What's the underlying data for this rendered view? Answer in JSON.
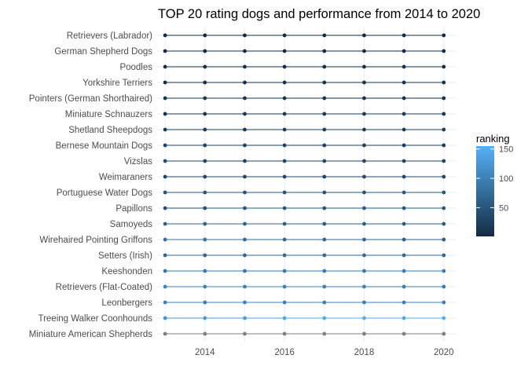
{
  "chart_data": {
    "type": "line",
    "title": "TOP 20 rating dogs and performance from 2014 to 2020",
    "xlabel": "",
    "ylabel": "",
    "x": [
      2013,
      2014,
      2015,
      2016,
      2017,
      2018,
      2019,
      2020
    ],
    "xlim": [
      2012.8,
      2020.3
    ],
    "x_ticks": [
      "2014",
      "2016",
      "2018",
      "2020"
    ],
    "x_tick_values": [
      2014,
      2016,
      2018,
      2020
    ],
    "grid": true,
    "legend": {
      "title": "ranking",
      "position": "right",
      "ticks": [
        50,
        100,
        150
      ],
      "tick_labels": [
        "50",
        "100",
        "150"
      ],
      "range": [
        1,
        155
      ]
    },
    "colors": {
      "low": "#132B43",
      "high": "#56B1F7",
      "na": "#7f7f7f"
    },
    "breeds": [
      {
        "name": "Retrievers (Labrador)",
        "values": [
          1,
          1,
          1,
          1,
          1,
          1,
          1,
          1
        ]
      },
      {
        "name": "German Shepherd Dogs",
        "values": [
          2,
          2,
          2,
          2,
          2,
          2,
          2,
          2
        ]
      },
      {
        "name": "Poodles",
        "values": [
          8,
          7,
          7,
          7,
          7,
          7,
          6,
          5
        ]
      },
      {
        "name": "Yorkshire Terriers",
        "values": [
          6,
          6,
          6,
          9,
          9,
          9,
          10,
          10
        ]
      },
      {
        "name": "Pointers (German Shorthaired)",
        "values": [
          13,
          12,
          11,
          11,
          9,
          9,
          8,
          8
        ]
      },
      {
        "name": "Miniature Schnauzers",
        "values": [
          11,
          12,
          12,
          16,
          17,
          17,
          19,
          18
        ]
      },
      {
        "name": "Shetland Sheepdogs",
        "values": [
          19,
          20,
          20,
          23,
          24,
          23,
          24,
          24
        ]
      },
      {
        "name": "Bernese Mountain Dogs",
        "values": [
          32,
          29,
          27,
          27,
          25,
          22,
          22,
          22
        ]
      },
      {
        "name": "Vizslas",
        "values": [
          41,
          32,
          31,
          33,
          33,
          33,
          31,
          31
        ]
      },
      {
        "name": "Weimaraners",
        "values": [
          32,
          34,
          32,
          34,
          32,
          34,
          35,
          36
        ]
      },
      {
        "name": "Portuguese Water Dogs",
        "values": [
          49,
          51,
          50,
          49,
          48,
          48,
          52,
          50
        ]
      },
      {
        "name": "Papillons",
        "values": [
          43,
          45,
          49,
          49,
          49,
          53,
          49,
          54
        ]
      },
      {
        "name": "Samoyeds",
        "values": [
          65,
          66,
          64,
          60,
          59,
          58,
          57,
          56
        ]
      },
      {
        "name": "Wirehaired Pointing Griffons",
        "values": [
          81,
          84,
          76,
          70,
          71,
          69,
          62,
          58
        ]
      },
      {
        "name": "Setters (Irish)",
        "values": [
          70,
          70,
          72,
          74,
          74,
          72,
          73,
          74
        ]
      },
      {
        "name": "Keeshonden",
        "values": [
          88,
          90,
          87,
          90,
          90,
          90,
          93,
          95
        ]
      },
      {
        "name": "Retrievers (Flat-Coated)",
        "values": [
          103,
          100,
          98,
          101,
          97,
          97,
          94,
          95
        ]
      },
      {
        "name": "Leonbergers",
        "values": [
          102,
          95,
          101,
          99,
          98,
          98,
          97,
          97
        ]
      },
      {
        "name": "Treeing Walker Coonhounds",
        "values": [
          120,
          128,
          130,
          144,
          147,
          150,
          145,
          152
        ]
      },
      {
        "name": "Miniature American Shepherds",
        "values": [
          null,
          null,
          null,
          null,
          null,
          null,
          null,
          null
        ]
      }
    ]
  }
}
